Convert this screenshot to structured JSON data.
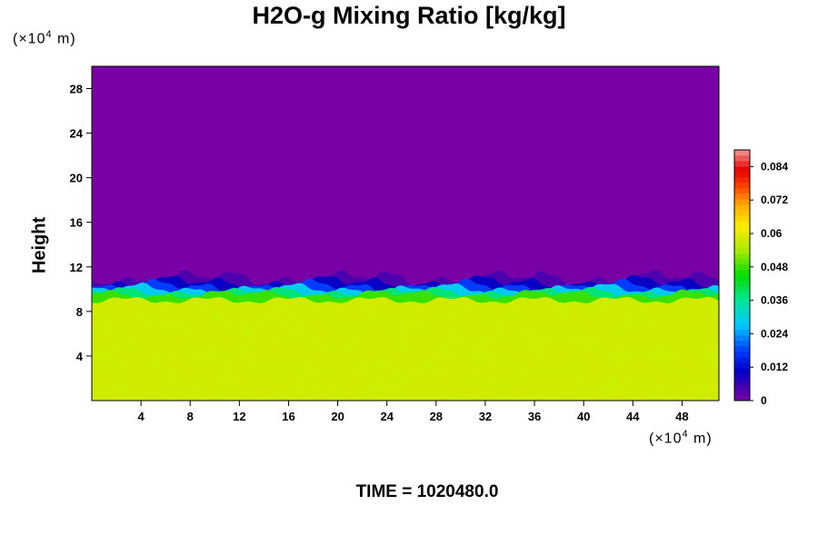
{
  "chart_data": {
    "type": "heatmap",
    "title": "H2O-g Mixing Ratio [kg/kg]",
    "ylabel": "Height",
    "y_unit": {
      "prefix": "(×10",
      "exponent": "4",
      "suffix": " m)"
    },
    "x_unit": {
      "prefix": "(×10",
      "exponent": "4",
      "suffix": " m)"
    },
    "xlim": [
      0,
      51
    ],
    "ylim": [
      0,
      30
    ],
    "x_ticks": [
      "4",
      "8",
      "12",
      "16",
      "20",
      "24",
      "28",
      "32",
      "36",
      "40",
      "44",
      "48"
    ],
    "y_ticks": [
      "4",
      "8",
      "12",
      "16",
      "20",
      "24",
      "28"
    ],
    "colorbar": {
      "min": 0,
      "max": 0.09,
      "ticks": [
        "0",
        "0.012",
        "0.024",
        "0.036",
        "0.048",
        "0.06",
        "0.072",
        "0.084"
      ]
    },
    "field": {
      "upper_value": 0,
      "lower_value": 0.058,
      "interface_height": 9.5
    },
    "footer": "TIME = 1020480.0"
  }
}
